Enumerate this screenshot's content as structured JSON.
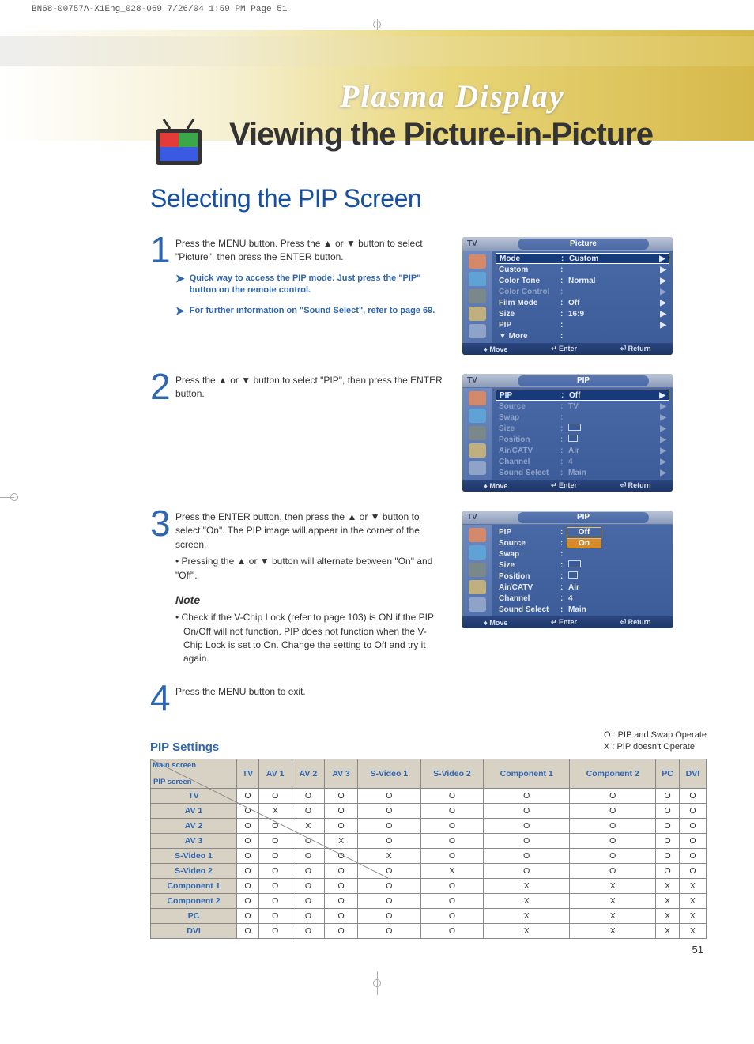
{
  "print_header": "BN68-00757A-X1Eng_028-069  7/26/04  1:59 PM  Page 51",
  "brand": "Plasma Display",
  "main_title": "Viewing the Picture-in-Picture",
  "section_title": "Selecting the PIP Screen",
  "steps": {
    "s1": {
      "num": "1",
      "body": "Press the MENU button. Press the ▲ or ▼ button to select \"Picture\", then press the ENTER button.",
      "tip1": "Quick way to access the PIP mode: Just press the \"PIP\" button on the remote control.",
      "tip2": "For further information on \"Sound Select\", refer to page 69."
    },
    "s2": {
      "num": "2",
      "body": "Press the ▲ or ▼ button to select \"PIP\", then press the ENTER button."
    },
    "s3": {
      "num": "3",
      "body": "Press the ENTER button, then press the ▲ or ▼ button to select \"On\". The PIP image will appear in the corner of the screen.",
      "bullet": "• Pressing the ▲ or ▼ button will alternate between \"On\" and \"Off\".",
      "note_heading": "Note",
      "note": "•   Check if the V-Chip Lock (refer to page 103) is ON if the PIP On/Off will not function. PIP does not function when the V-Chip Lock is set to On. Change the setting to Off and try it again."
    },
    "s4": {
      "num": "4",
      "body": "Press the MENU button to exit."
    }
  },
  "osd_common": {
    "tv": "TV",
    "move": "Move",
    "enter": "Enter",
    "return": "Return"
  },
  "osd1": {
    "title": "Picture",
    "rows": [
      {
        "k": "Mode",
        "v": "Custom",
        "sel": true,
        "arr": true
      },
      {
        "k": "Custom",
        "v": "",
        "arr": true
      },
      {
        "k": "Color Tone",
        "v": "Normal",
        "arr": true
      },
      {
        "k": "Color Control",
        "v": "",
        "dim": true,
        "arr": true
      },
      {
        "k": "Film Mode",
        "v": "Off",
        "arr": true
      },
      {
        "k": "Size",
        "v": "16:9",
        "arr": true
      },
      {
        "k": "PIP",
        "v": "",
        "arr": true
      },
      {
        "k": "▼ More",
        "v": ""
      }
    ]
  },
  "osd2": {
    "title": "PIP",
    "rows": [
      {
        "k": "PIP",
        "v": "Off",
        "sel": true,
        "arr": true
      },
      {
        "k": "Source",
        "v": "TV",
        "dim": true,
        "arr": true
      },
      {
        "k": "Swap",
        "v": "",
        "dim": true,
        "arr": true
      },
      {
        "k": "Size",
        "v": "__size__",
        "dim": true,
        "arr": true
      },
      {
        "k": "Position",
        "v": "__pos__",
        "dim": true,
        "arr": true
      },
      {
        "k": "Air/CATV",
        "v": "Air",
        "dim": true,
        "arr": true
      },
      {
        "k": "Channel",
        "v": "4",
        "dim": true,
        "arr": true
      },
      {
        "k": "Sound Select",
        "v": "Main",
        "dim": true,
        "arr": true
      }
    ]
  },
  "osd3": {
    "title": "PIP",
    "rows": [
      {
        "k": "PIP",
        "v": "",
        "opt": "Off"
      },
      {
        "k": "Source",
        "v": "",
        "opt": "On",
        "opt_sel": true
      },
      {
        "k": "Swap",
        "v": ""
      },
      {
        "k": "Size",
        "v": "__size__"
      },
      {
        "k": "Position",
        "v": "__pos__"
      },
      {
        "k": "Air/CATV",
        "v": "Air"
      },
      {
        "k": "Channel",
        "v": "4"
      },
      {
        "k": "Sound Select",
        "v": "Main"
      }
    ]
  },
  "pip_settings": {
    "title": "PIP Settings",
    "legend_o": "O :  PIP and Swap Operate",
    "legend_x": "X  :  PIP doesn't Operate",
    "corner_main": "Main screen",
    "corner_pip": "PIP screen",
    "columns": [
      "TV",
      "AV 1",
      "AV 2",
      "AV 3",
      "S-Video 1",
      "S-Video 2",
      "Component 1",
      "Component 2",
      "PC",
      "DVI"
    ],
    "rows": [
      {
        "h": "TV",
        "c": [
          "O",
          "O",
          "O",
          "O",
          "O",
          "O",
          "O",
          "O",
          "O",
          "O"
        ]
      },
      {
        "h": "AV 1",
        "c": [
          "O",
          "X",
          "O",
          "O",
          "O",
          "O",
          "O",
          "O",
          "O",
          "O"
        ]
      },
      {
        "h": "AV 2",
        "c": [
          "O",
          "O",
          "X",
          "O",
          "O",
          "O",
          "O",
          "O",
          "O",
          "O"
        ]
      },
      {
        "h": "AV 3",
        "c": [
          "O",
          "O",
          "O",
          "X",
          "O",
          "O",
          "O",
          "O",
          "O",
          "O"
        ]
      },
      {
        "h": "S-Video 1",
        "c": [
          "O",
          "O",
          "O",
          "O",
          "X",
          "O",
          "O",
          "O",
          "O",
          "O"
        ]
      },
      {
        "h": "S-Video 2",
        "c": [
          "O",
          "O",
          "O",
          "O",
          "O",
          "X",
          "O",
          "O",
          "O",
          "O"
        ]
      },
      {
        "h": "Component 1",
        "c": [
          "O",
          "O",
          "O",
          "O",
          "O",
          "O",
          "X",
          "X",
          "X",
          "X"
        ]
      },
      {
        "h": "Component 2",
        "c": [
          "O",
          "O",
          "O",
          "O",
          "O",
          "O",
          "X",
          "X",
          "X",
          "X"
        ]
      },
      {
        "h": "PC",
        "c": [
          "O",
          "O",
          "O",
          "O",
          "O",
          "O",
          "X",
          "X",
          "X",
          "X"
        ]
      },
      {
        "h": "DVI",
        "c": [
          "O",
          "O",
          "O",
          "O",
          "O",
          "O",
          "X",
          "X",
          "X",
          "X"
        ]
      }
    ]
  },
  "page_num": "51",
  "colors": {
    "blue": "#3066b0",
    "osd_bg": "#4a6aa8",
    "osd_sel": "#173b7a",
    "table_bg": "#d8d2c5"
  }
}
